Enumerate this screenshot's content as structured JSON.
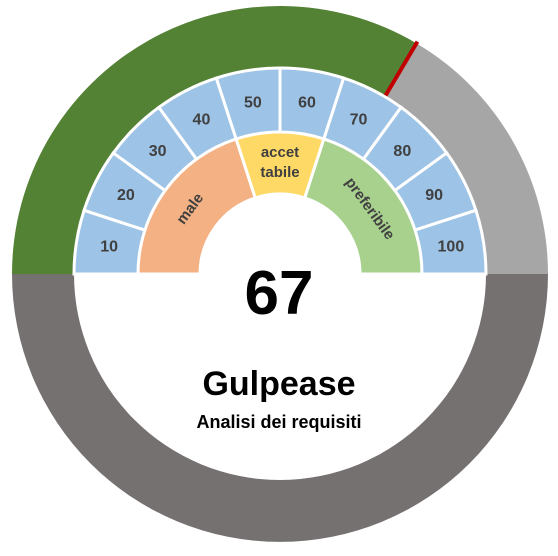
{
  "chart_data": {
    "type": "gauge",
    "title": "Gulpease",
    "subtitle": "Analisi dei requisiti",
    "value": 67,
    "range": [
      0,
      100
    ],
    "ticks": [
      "10",
      "20",
      "30",
      "40",
      "50",
      "60",
      "70",
      "80",
      "90",
      "100"
    ],
    "zones": [
      {
        "label": "male",
        "from": 0,
        "to": 40,
        "color": "#F4B183"
      },
      {
        "label": "accet\ntabile",
        "line1": "accet",
        "line2": "tabile",
        "from": 40,
        "to": 60,
        "color": "#FFD966"
      },
      {
        "label": "preferibile",
        "from": 60,
        "to": 100,
        "color": "#A9D18E"
      }
    ],
    "colors": {
      "filled_arc": "#548235",
      "remaining_arc": "#A6A6A6",
      "bottom_ring": "#767171",
      "tick_band": "#9DC3E6",
      "needle": "#C00000"
    }
  }
}
